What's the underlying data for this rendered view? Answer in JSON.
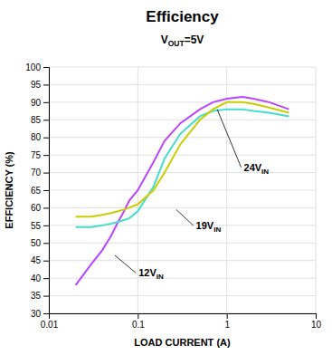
{
  "chart_data": {
    "type": "line",
    "title": "Efficiency",
    "subtitle": [
      "V",
      "OUT",
      "=5V"
    ],
    "x_label": "LOAD CURRENT (A)",
    "y_label": "EFFICIENCY (%)",
    "log": "x",
    "grid": true,
    "xlim": [
      0.01,
      10
    ],
    "ylim": [
      30,
      100
    ],
    "xticks": [
      0.01,
      0.1,
      1,
      10
    ],
    "yticks": [
      30,
      35,
      40,
      45,
      50,
      55,
      60,
      65,
      70,
      75,
      80,
      85,
      90,
      95,
      100
    ],
    "x": [
      0.02,
      0.03,
      0.04,
      0.05,
      0.06,
      0.07,
      0.08,
      0.1,
      0.15,
      0.2,
      0.3,
      0.5,
      0.7,
      1.0,
      1.5,
      2.0,
      3.0,
      5.0
    ],
    "series": [
      {
        "color": "#bb44ff",
        "values": [
          38,
          44,
          48,
          52,
          56,
          59,
          62,
          65,
          73,
          79,
          84,
          88,
          90,
          91,
          91.5,
          91,
          90,
          88
        ]
      },
      {
        "color": "#44ddcc",
        "values": [
          54.5,
          54.5,
          55,
          55.5,
          56,
          56.5,
          57,
          59,
          66,
          74,
          81,
          86,
          87.5,
          88,
          88,
          87.5,
          87,
          86
        ]
      },
      {
        "color": "#cccc00",
        "values": [
          57.5,
          57.5,
          58,
          58.5,
          59,
          59.5,
          60,
          61,
          65,
          70,
          78,
          85,
          88,
          90,
          90,
          89.5,
          88.5,
          87
        ]
      }
    ],
    "annotations": [
      {
        "text": [
          "24V",
          "IN"
        ],
        "x": 0.78,
        "y": 88.0,
        "label_x": 1.45,
        "label_y": 71.5
      },
      {
        "text": [
          "19V",
          "IN"
        ],
        "x": 0.27,
        "y": 59.5,
        "label_x": 0.42,
        "label_y": 55
      },
      {
        "text": [
          "12V",
          "IN"
        ],
        "x": 0.055,
        "y": 46.5,
        "label_x": 0.095,
        "label_y": 41.5
      }
    ]
  }
}
